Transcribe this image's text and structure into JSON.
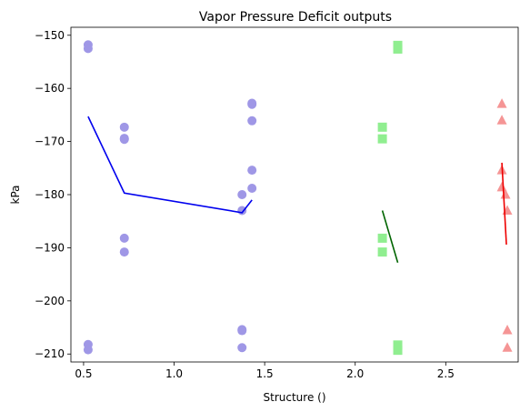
{
  "chart_data": {
    "type": "scatter",
    "title": "Vapor Pressure Deficit outputs",
    "xlabel": "Structure ()",
    "ylabel": "kPa",
    "xlim": [
      0.43,
      2.9
    ],
    "ylim": [
      -211.5,
      -148.5
    ],
    "xticks": [
      0.5,
      1.0,
      1.5,
      2.0,
      2.5
    ],
    "xtick_labels": [
      "0.5",
      "1.0",
      "1.5",
      "2.0",
      "2.5"
    ],
    "yticks": [
      -210,
      -200,
      -190,
      -180,
      -170,
      -160,
      -150
    ],
    "ytick_labels": [
      "−210",
      "−200",
      "−190",
      "−180",
      "−170",
      "−160",
      "−150"
    ],
    "grid": false,
    "series": [
      {
        "marker": "circle",
        "color": "#9f97e6",
        "line_color": "#0000ee",
        "points": [
          [
            0.525,
            -151.8
          ],
          [
            0.525,
            -152.5
          ],
          [
            0.525,
            -208.2
          ],
          [
            0.525,
            -209.2
          ],
          [
            0.725,
            -167.3
          ],
          [
            0.725,
            -169.4
          ],
          [
            0.725,
            -169.6
          ],
          [
            0.725,
            -188.2
          ],
          [
            0.725,
            -190.8
          ],
          [
            1.375,
            -180.0
          ],
          [
            1.375,
            -183.0
          ],
          [
            1.375,
            -205.4
          ],
          [
            1.375,
            -205.6
          ],
          [
            1.375,
            -208.8
          ],
          [
            1.43,
            -162.8
          ],
          [
            1.43,
            -163.0
          ],
          [
            1.43,
            -166.1
          ],
          [
            1.43,
            -175.4
          ],
          [
            1.43,
            -178.8
          ]
        ],
        "line": [
          [
            0.525,
            -165.3
          ],
          [
            0.725,
            -179.7
          ],
          [
            1.375,
            -183.4
          ],
          [
            1.43,
            -181.0
          ]
        ]
      },
      {
        "marker": "square",
        "color": "#90ee90",
        "line_color": "#006400",
        "points": [
          [
            2.15,
            -167.3
          ],
          [
            2.15,
            -169.5
          ],
          [
            2.15,
            -188.2
          ],
          [
            2.15,
            -190.8
          ],
          [
            2.235,
            -151.9
          ],
          [
            2.235,
            -152.6
          ],
          [
            2.235,
            -208.3
          ],
          [
            2.235,
            -209.3
          ]
        ],
        "line": [
          [
            2.15,
            -183.0
          ],
          [
            2.235,
            -192.8
          ]
        ]
      },
      {
        "marker": "triangle",
        "color": "#f59595",
        "line_color": "#ee0000",
        "points": [
          [
            2.81,
            -162.9
          ],
          [
            2.81,
            -166.0
          ],
          [
            2.81,
            -175.4
          ],
          [
            2.81,
            -178.6
          ],
          [
            2.83,
            -180.0
          ],
          [
            2.84,
            -183.0
          ],
          [
            2.84,
            -205.5
          ],
          [
            2.84,
            -208.8
          ]
        ],
        "line": [
          [
            2.81,
            -174.0
          ],
          [
            2.835,
            -189.4
          ]
        ]
      }
    ]
  }
}
